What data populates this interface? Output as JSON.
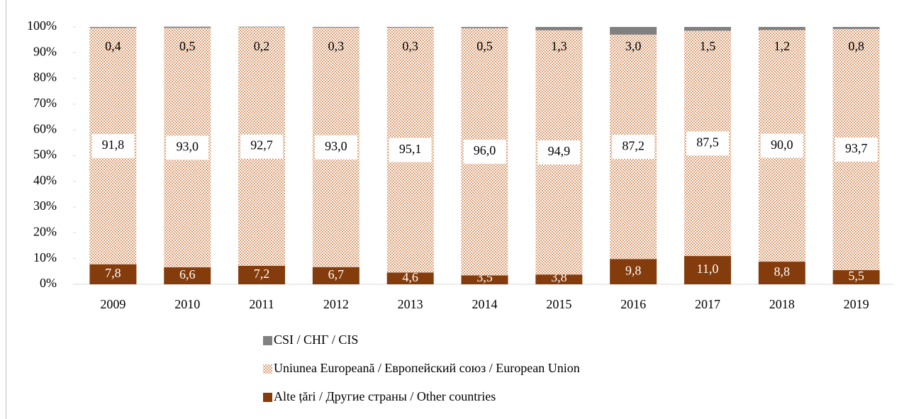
{
  "chart_data": {
    "type": "stacked_bar",
    "categories": [
      "2009",
      "2010",
      "2011",
      "2012",
      "2013",
      "2014",
      "2015",
      "2016",
      "2017",
      "2018",
      "2019"
    ],
    "series": [
      {
        "name": "CSI / СНГ / CIS",
        "color": "#808080",
        "values": [
          0.4,
          0.5,
          0.2,
          0.3,
          0.3,
          0.5,
          1.3,
          3.0,
          1.5,
          1.2,
          0.8
        ],
        "value_labels": [
          "0,4",
          "0,5",
          "0,2",
          "0,3",
          "0,3",
          "0,5",
          "1,3",
          "3,0",
          "1,5",
          "1,2",
          "0,8"
        ]
      },
      {
        "name": "Uniunea Europeană / Европейский союз / European Union",
        "color": "#c55a11",
        "values": [
          91.8,
          93.0,
          92.7,
          93.0,
          95.1,
          96.0,
          94.9,
          87.2,
          87.5,
          90.0,
          93.7
        ],
        "value_labels": [
          "91,8",
          "93,0",
          "92,7",
          "93,0",
          "95,1",
          "96,0",
          "94,9",
          "87,2",
          "87,5",
          "90,0",
          "93,7"
        ]
      },
      {
        "name": "Alte țări / Другие страны / Other countries",
        "color": "#843c0c",
        "values": [
          7.8,
          6.6,
          7.2,
          6.7,
          4.6,
          3.5,
          3.8,
          9.8,
          11.0,
          8.8,
          5.5
        ],
        "value_labels": [
          "7,8",
          "6,6",
          "7,2",
          "6,7",
          "4,6",
          "3,5",
          "3,8",
          "9,8",
          "11,0",
          "8,8",
          "5,5"
        ]
      }
    ],
    "ylim": [
      0,
      100
    ],
    "yticks": [
      {
        "value": 0,
        "label": "0%"
      },
      {
        "value": 10,
        "label": "10%"
      },
      {
        "value": 20,
        "label": "20%"
      },
      {
        "value": 30,
        "label": "30%"
      },
      {
        "value": 40,
        "label": "40%"
      },
      {
        "value": 50,
        "label": "50%"
      },
      {
        "value": 60,
        "label": "60%"
      },
      {
        "value": 70,
        "label": "70%"
      },
      {
        "value": 80,
        "label": "80%"
      },
      {
        "value": 90,
        "label": "90%"
      },
      {
        "value": 100,
        "label": "100%"
      }
    ],
    "legend": "bottom"
  }
}
